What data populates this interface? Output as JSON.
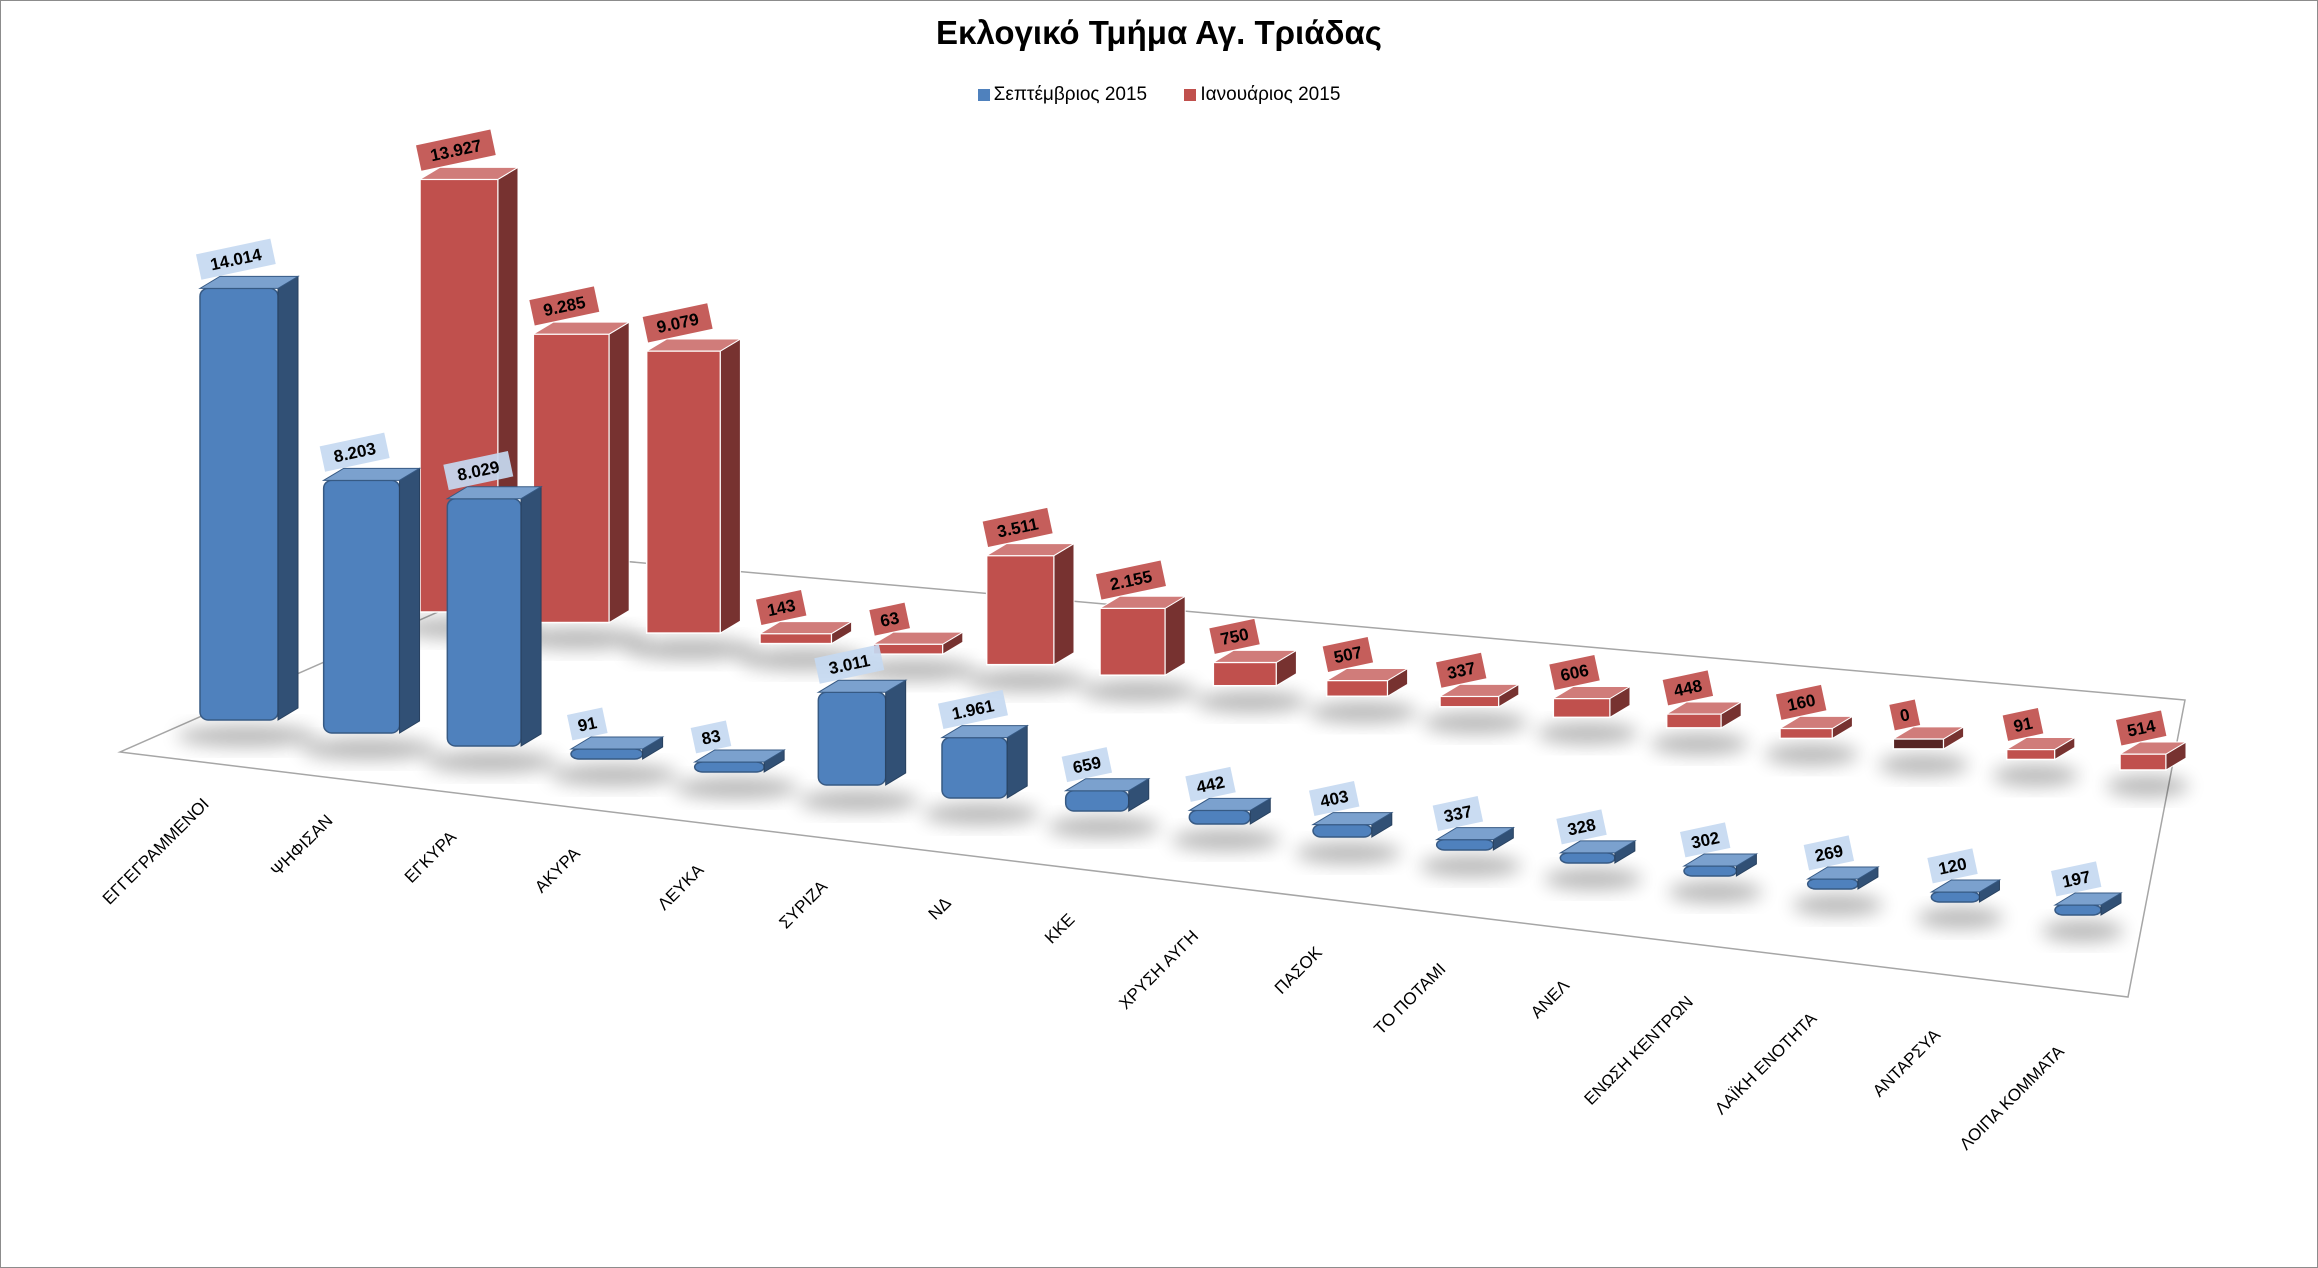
{
  "chart_data": {
    "type": "bar",
    "title": "Εκλογικό Τμήμα Αγ. Τριάδας",
    "xlabel": "",
    "ylabel": "",
    "ylim": [
      0,
      15000
    ],
    "grid": false,
    "legend_position": "top-center",
    "categories": [
      "ΕΓΓΕΓΡΑΜΜΕΝΟΙ",
      "ΨΗΦΙΣΑΝ",
      "ΕΓΚΥΡΑ",
      "ΑΚΥΡΑ",
      "ΛΕΥΚΑ",
      "ΣΥΡΙΖΑ",
      "ΝΔ",
      "ΚΚΕ",
      "ΧΡΥΣΗ ΑΥΓΗ",
      "ΠΑΣΟΚ",
      "ΤΟ ΠΟΤΑΜΙ",
      "ΑΝΕΛ",
      "ΕΝΩΣΗ ΚΕΝΤΡΩΝ",
      "ΛΑΪΚΗ ΕΝΟΤΗΤΑ",
      "ΑΝΤΑΡΣΥΑ",
      "ΛΟΙΠΑ ΚΟΜΜΑΤΑ"
    ],
    "series": [
      {
        "name": "Σεπτέμβριος 2015",
        "color": "#4f81bd",
        "values": [
          14014,
          8203,
          8029,
          91,
          83,
          3011,
          1961,
          659,
          442,
          403,
          337,
          328,
          302,
          269,
          120,
          197
        ],
        "labels": [
          "14.014",
          "8.203",
          "8.029",
          "91",
          "83",
          "3.011",
          "1.961",
          "659",
          "442",
          "403",
          "337",
          "328",
          "302",
          "269",
          "120",
          "197"
        ]
      },
      {
        "name": "Ιανουάριος 2015",
        "color": "#c0504d",
        "values": [
          13927,
          9285,
          9079,
          143,
          63,
          3511,
          2155,
          750,
          507,
          337,
          606,
          448,
          160,
          0,
          91,
          514
        ],
        "labels": [
          "13.927",
          "9.285",
          "9.079",
          "143",
          "63",
          "3.511",
          "2.155",
          "750",
          "507",
          "337",
          "606",
          "448",
          "160",
          "0",
          "91",
          "514"
        ]
      }
    ]
  }
}
